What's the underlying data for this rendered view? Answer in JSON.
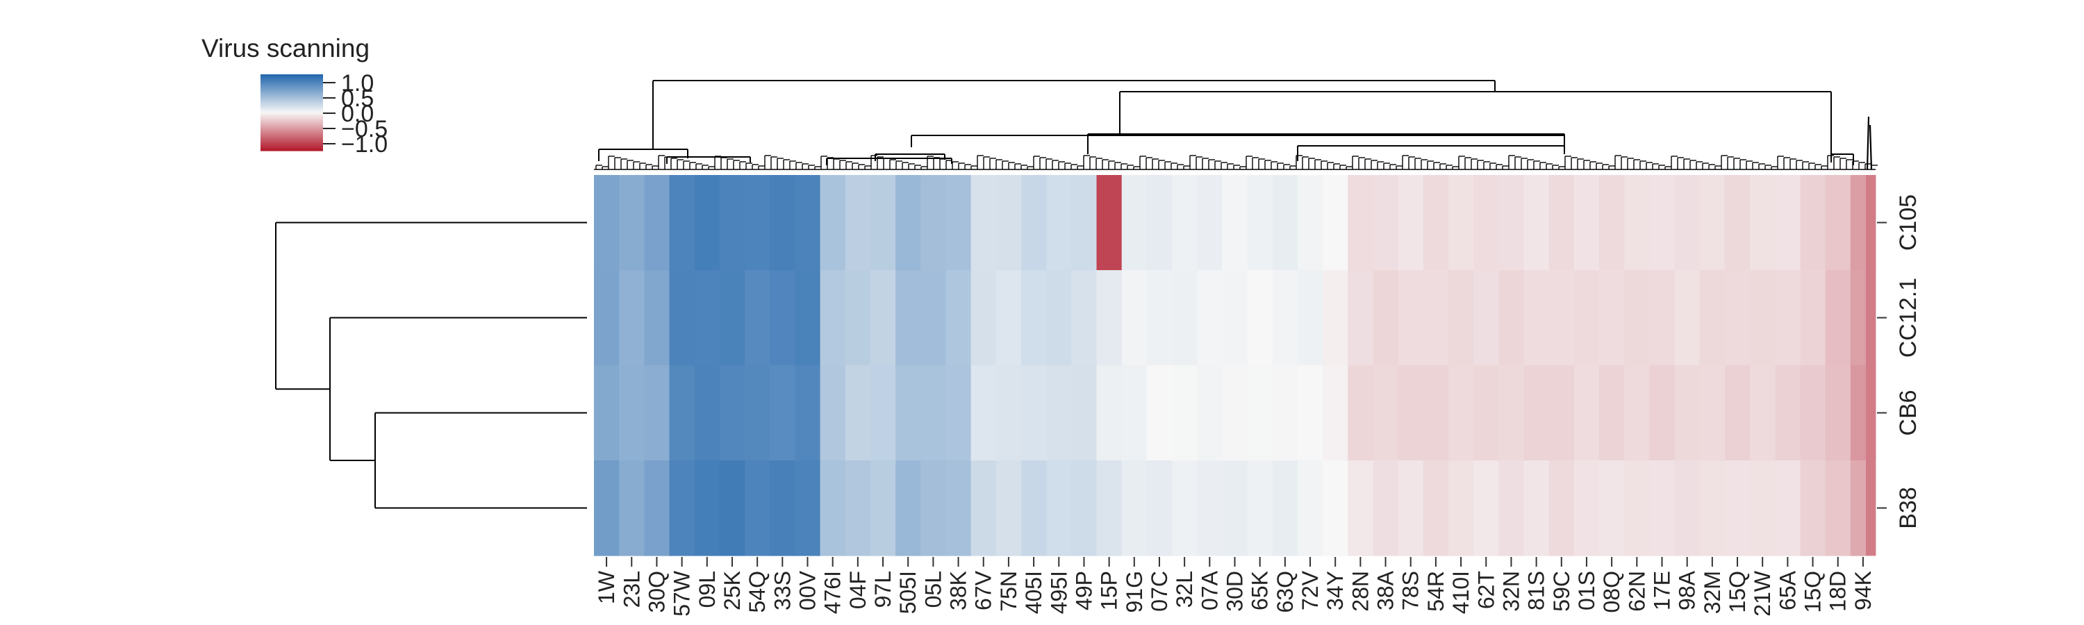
{
  "chart_data": {
    "type": "heatmap",
    "legend": {
      "title": "Virus scanning",
      "ticks": [
        "1.0",
        "0.5",
        "0.0",
        "−0.5",
        "−1.0"
      ],
      "range": [
        -1.0,
        1.0
      ],
      "placement": "top-left"
    },
    "rows": [
      "C105",
      "CC12.1",
      "CB6",
      "B38"
    ],
    "columns": [
      "1W",
      "23L",
      "30Q",
      "57W",
      "09L",
      "25K",
      "54Q",
      "33S",
      "00V",
      "476I",
      "04F",
      "97L",
      "505I",
      "05L",
      "38K",
      "67V",
      "75N",
      "405I",
      "495I",
      "49P",
      "15P",
      "91G",
      "07C",
      "32L",
      "07A",
      "30D",
      "65K",
      "63Q",
      "72V",
      "34Y",
      "28N",
      "38A",
      "78S",
      "54R",
      "410I",
      "62T",
      "32N",
      "81S",
      "59C",
      "01S",
      "08Q",
      "62N",
      "17E",
      "98A",
      "32M",
      "15Q",
      "21W",
      "65A",
      "15Q",
      "18D",
      "94K"
    ],
    "column_values": [
      0.57,
      0.5,
      0.55,
      0.78,
      0.8,
      0.8,
      0.77,
      0.78,
      0.79,
      0.33,
      0.28,
      0.27,
      0.4,
      0.38,
      0.35,
      0.15,
      0.14,
      0.18,
      0.17,
      0.16,
      0.08,
      0.05,
      0.04,
      0.03,
      0.03,
      0.02,
      0.02,
      0.03,
      0.02,
      -0.03,
      -0.12,
      -0.13,
      -0.12,
      -0.14,
      -0.13,
      -0.12,
      -0.13,
      -0.12,
      -0.14,
      -0.12,
      -0.13,
      -0.12,
      -0.13,
      -0.12,
      -0.13,
      -0.14,
      -0.12,
      -0.13,
      -0.18,
      -0.25,
      -0.4
    ],
    "anomaly": {
      "row": "C105",
      "column": "15P",
      "value": -0.8
    },
    "dendrogram_rows": "left",
    "dendrogram_columns": "top",
    "xlabel": "",
    "ylabel": ""
  },
  "colors": {
    "high": "#2166ac",
    "mid": "#f7f7f7",
    "low": "#b2182b",
    "line": "#000000"
  }
}
